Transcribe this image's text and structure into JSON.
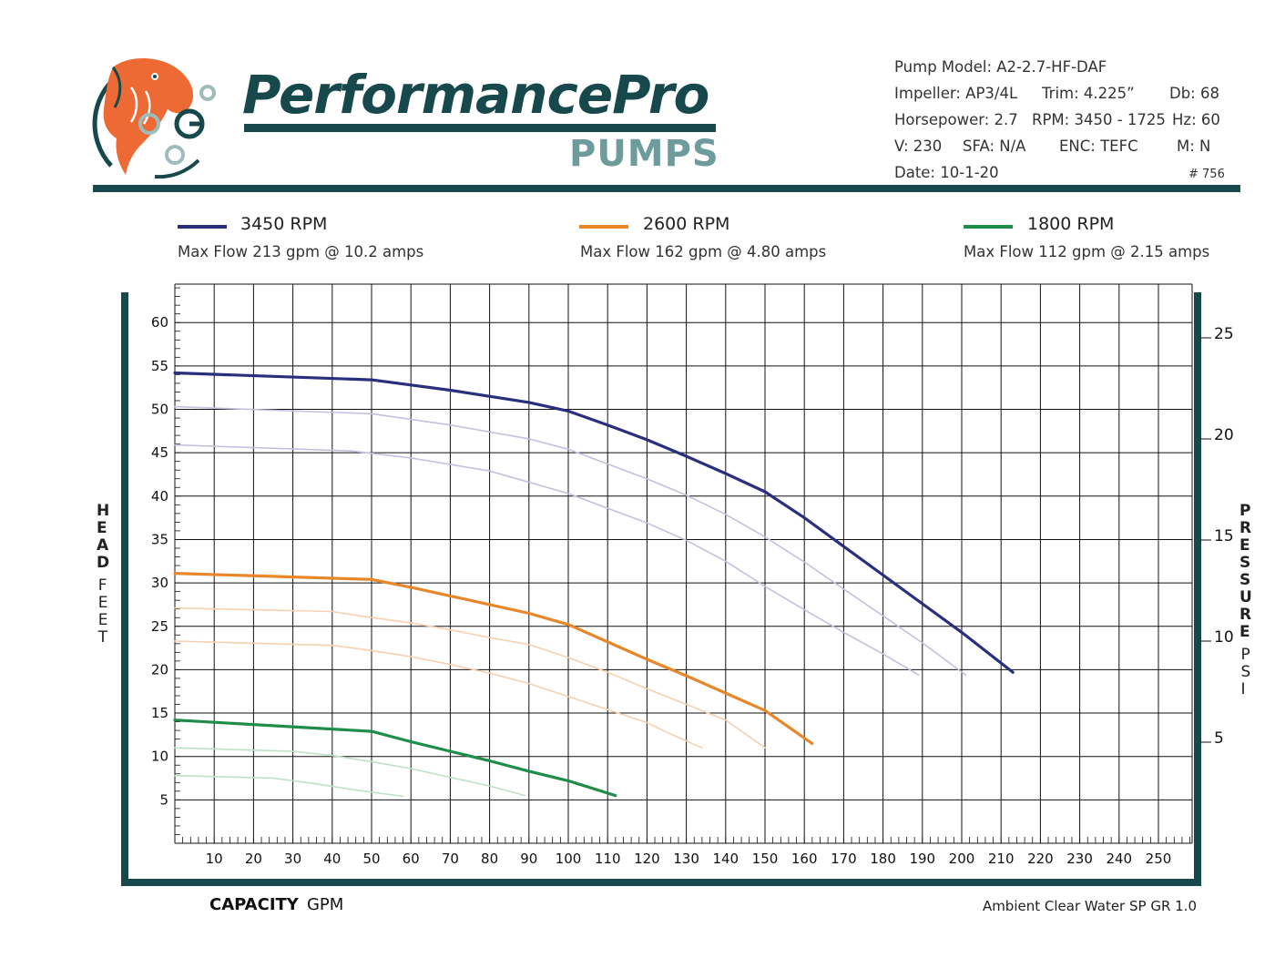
{
  "header": {
    "brand": "PerformancePro",
    "brand_sub": "PUMPS",
    "specs": {
      "pump_model": "Pump Model:   A2-2.7-HF-DAF",
      "impeller": "Impeller:   AP3/4L",
      "trim": "Trim:  4.225”",
      "db": "Db:  68",
      "horsepower": "Horsepower:  2.7",
      "rpm": "RPM:  3450 - 1725",
      "hz": "Hz:  60",
      "v": "V:  230",
      "sfa": "SFA:  N/A",
      "enc": "ENC:  TEFC",
      "m": "M:   N",
      "date": "Date:   10-1-20",
      "doc_no": "# 756"
    }
  },
  "legend": [
    {
      "title": "3450 RPM",
      "sub": "Max Flow 213 gpm @ 10.2 amps",
      "color": "#2a2f7d"
    },
    {
      "title": "2600 RPM",
      "sub": "Max Flow 162 gpm @ 4.80 amps",
      "color": "#e8872a"
    },
    {
      "title": "1800 RPM",
      "sub": "Max Flow 112 gpm @ 2.15 amps",
      "color": "#1e8d47"
    }
  ],
  "axes": {
    "x_label_bold": "CAPACITY",
    "x_label_light": "GPM",
    "y_left_bold": "HEAD",
    "y_left_light": "FEET",
    "y_right_bold": "PRESSURE",
    "y_right_light": "PSI",
    "note": "Ambient Clear Water SP GR 1.0"
  },
  "colors": {
    "frame": "#17484c",
    "brand": "#17484c",
    "brand_sub": "#6e9c9d",
    "logo_orange": "#ee6a35",
    "logo_teal": "#9fbcbc"
  },
  "chart_data": {
    "type": "line",
    "xlabel": "CAPACITY GPM",
    "ylabel": "HEAD FEET",
    "y2label": "PRESSURE PSI",
    "xlim": [
      0,
      260
    ],
    "ylim": [
      0,
      64
    ],
    "y2lim": [
      0,
      27.7
    ],
    "x_ticks": [
      10,
      20,
      30,
      40,
      50,
      60,
      70,
      80,
      90,
      100,
      110,
      120,
      130,
      140,
      150,
      160,
      170,
      180,
      190,
      200,
      210,
      220,
      230,
      240,
      250
    ],
    "y_ticks": [
      5,
      10,
      15,
      20,
      25,
      30,
      35,
      40,
      45,
      50,
      55,
      60
    ],
    "y2_ticks": [
      5,
      10,
      15,
      20,
      25
    ],
    "grid": true,
    "series": [
      {
        "name": "3450 RPM",
        "role": "main",
        "color": "#2a2f7d",
        "width": 3.2,
        "x": [
          0,
          50,
          70,
          90,
          100,
          110,
          120,
          130,
          140,
          150,
          160,
          170,
          180,
          190,
          200,
          213
        ],
        "y": [
          54.2,
          53.4,
          52.2,
          50.8,
          49.8,
          48.2,
          46.5,
          44.6,
          42.6,
          40.5,
          37.5,
          34.2,
          30.9,
          27.6,
          24.3,
          19.7
        ]
      },
      {
        "role": "trim",
        "color": "#c3c1dd",
        "width": 1.6,
        "x": [
          0,
          50,
          70,
          90,
          100,
          110,
          120,
          130,
          140,
          150,
          160,
          170,
          180,
          190,
          201
        ],
        "y": [
          50.3,
          49.5,
          48.2,
          46.6,
          45.4,
          43.7,
          42.0,
          40.1,
          37.9,
          35.3,
          32.4,
          29.3,
          26.2,
          23.1,
          19.4
        ]
      },
      {
        "role": "trim",
        "color": "#c3c1dd",
        "width": 1.6,
        "x": [
          0,
          45,
          60,
          80,
          100,
          110,
          120,
          130,
          140,
          150,
          160,
          170,
          180,
          189
        ],
        "y": [
          45.9,
          45.2,
          44.4,
          42.9,
          40.3,
          38.6,
          36.9,
          34.9,
          32.5,
          29.6,
          26.9,
          24.3,
          21.8,
          19.4
        ]
      },
      {
        "name": "2600 RPM",
        "role": "main",
        "color": "#e8872a",
        "width": 3.2,
        "x": [
          0,
          50,
          60,
          70,
          80,
          90,
          100,
          110,
          120,
          130,
          140,
          150,
          162
        ],
        "y": [
          31.1,
          30.4,
          29.5,
          28.5,
          27.5,
          26.5,
          25.2,
          23.2,
          21.2,
          19.3,
          17.3,
          15.3,
          11.5
        ]
      },
      {
        "role": "trim",
        "color": "#f6d1b0",
        "width": 1.6,
        "x": [
          0,
          40,
          50,
          60,
          70,
          80,
          90,
          100,
          110,
          120,
          130,
          140,
          150
        ],
        "y": [
          27.1,
          26.7,
          26.0,
          25.4,
          24.6,
          23.7,
          22.9,
          21.4,
          19.7,
          17.8,
          16.0,
          14.2,
          11.0
        ]
      },
      {
        "role": "trim",
        "color": "#f6d1b0",
        "width": 1.6,
        "x": [
          0,
          40,
          50,
          60,
          70,
          80,
          90,
          100,
          110,
          120,
          125,
          134
        ],
        "y": [
          23.3,
          22.8,
          22.2,
          21.5,
          20.6,
          19.6,
          18.4,
          16.9,
          15.4,
          13.9,
          12.8,
          11.0
        ]
      },
      {
        "name": "1800 RPM",
        "role": "main",
        "color": "#1e8d47",
        "width": 3.2,
        "x": [
          0,
          50,
          60,
          70,
          80,
          90,
          100,
          112
        ],
        "y": [
          14.2,
          12.9,
          11.7,
          10.6,
          9.5,
          8.3,
          7.2,
          5.5
        ]
      },
      {
        "role": "trim",
        "color": "#bde0c6",
        "width": 1.6,
        "x": [
          0,
          30,
          40,
          50,
          60,
          70,
          80,
          89
        ],
        "y": [
          11.0,
          10.6,
          10.1,
          9.4,
          8.6,
          7.6,
          6.6,
          5.5
        ]
      },
      {
        "role": "trim",
        "color": "#bde0c6",
        "width": 1.6,
        "x": [
          0,
          25,
          35,
          45,
          58
        ],
        "y": [
          7.8,
          7.5,
          6.9,
          6.2,
          5.4
        ]
      }
    ]
  }
}
